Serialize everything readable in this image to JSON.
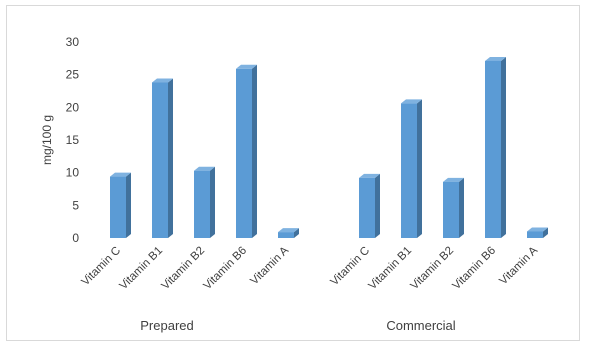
{
  "chart_data": {
    "type": "bar",
    "ylabel": "mg/100 g",
    "ylim": [
      0,
      30
    ],
    "yticks": [
      0,
      5,
      10,
      15,
      20,
      25,
      30
    ],
    "grid": false,
    "legend": "none",
    "style": "3d-column",
    "colors": {
      "front": "#5b9bd5",
      "side": "#41719c",
      "top": "#7fb2e0"
    },
    "groups": [
      {
        "name": "Prepared",
        "categories": [
          "Vitamin C",
          "Vitamin B1",
          "Vitamin B2",
          "Vitamin B6",
          "Vitamin A"
        ],
        "values": [
          9.4,
          23.8,
          10.3,
          25.9,
          0.9
        ]
      },
      {
        "name": "Commercial",
        "categories": [
          "Vitamin C",
          "Vitamin B1",
          "Vitamin B2",
          "Vitamin B6",
          "Vitamin A"
        ],
        "values": [
          9.2,
          20.6,
          8.6,
          27.1,
          1.0
        ]
      }
    ]
  }
}
